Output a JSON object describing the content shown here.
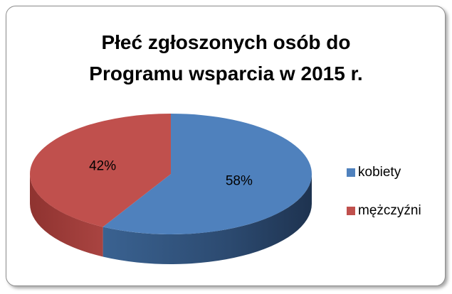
{
  "chart_data": {
    "type": "pie",
    "title": "Płeć zgłoszonych osób do Programu wsparcia w 2015 r.",
    "categories": [
      "kobiety",
      "mężczyźni"
    ],
    "values": [
      58,
      42
    ],
    "value_labels": [
      "58%",
      "42%"
    ],
    "colors": [
      "#4f81bd",
      "#c0504d"
    ],
    "legend": "right"
  }
}
